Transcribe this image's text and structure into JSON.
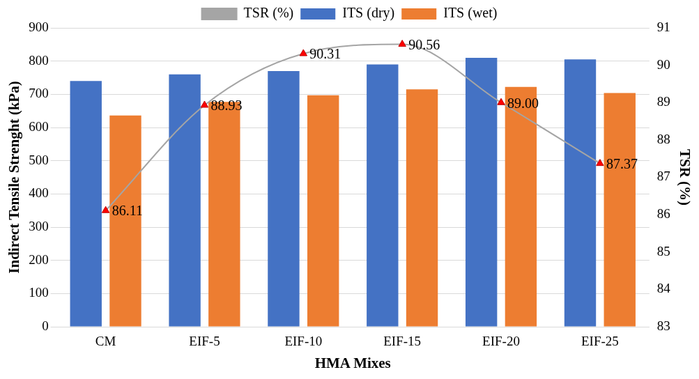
{
  "chart_data": {
    "type": "bar",
    "xlabel": "HMA Mixes",
    "ylabel": "Indirect Tensile Strenght (kPa)",
    "y2label": "TSR (%)",
    "categories": [
      "CM",
      "EIF-5",
      "EIF-10",
      "EIF-15",
      "EIF-20",
      "EIF-25"
    ],
    "series": [
      {
        "name": "ITS (dry)",
        "color": "#4472c4",
        "values": [
          740,
          760,
          770,
          790,
          810,
          805
        ]
      },
      {
        "name": "ITS (wet)",
        "color": "#ed7d31",
        "values": [
          636,
          677,
          697,
          715,
          722,
          704
        ]
      },
      {
        "name": "TSR (%)",
        "type": "line",
        "axis": "y2",
        "color": "#a5a5a5",
        "marker": "triangle",
        "values": [
          86.11,
          88.93,
          90.31,
          90.56,
          89.0,
          87.37
        ],
        "value_labels": [
          "86.11",
          "88.93",
          "90.31",
          "90.56",
          "89.00",
          "87.37"
        ]
      }
    ],
    "ylim": [
      0,
      900
    ],
    "yticks": [
      0,
      100,
      200,
      300,
      400,
      500,
      600,
      700,
      800,
      900
    ],
    "y2lim": [
      83,
      91
    ],
    "y2ticks": [
      83,
      84,
      85,
      86,
      87,
      88,
      89,
      90,
      91
    ],
    "grid": "y",
    "legend": "top"
  }
}
